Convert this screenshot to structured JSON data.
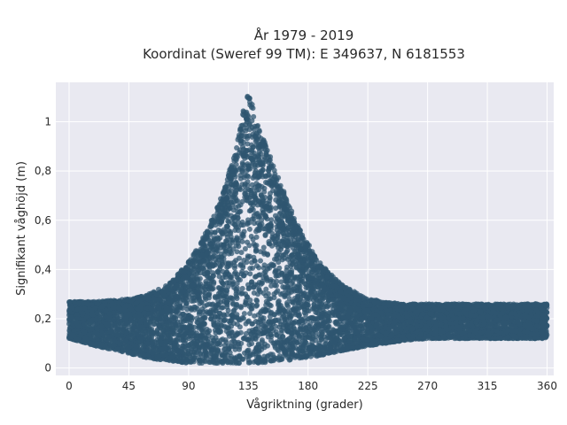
{
  "chart_data": {
    "type": "scatter",
    "title": "År 1979 - 2019",
    "subtitle": "Koordinat (Sweref 99 TM): E 349637, N 6181553",
    "xlabel": "Vågriktning (grader)",
    "ylabel": "Signifikant våghöjd (m)",
    "xlim": [
      -10,
      365
    ],
    "ylim": [
      -0.03,
      1.16
    ],
    "xticks": [
      0,
      45,
      90,
      135,
      180,
      225,
      270,
      315,
      360
    ],
    "yticks": [
      0,
      0.2,
      0.4,
      0.6,
      0.8,
      1
    ],
    "ytick_labels": [
      "0",
      "0,2",
      "0,4",
      "0,6",
      "0,8",
      "1"
    ],
    "grid": true,
    "marker_color": "#2f5570",
    "plot_background": "#e9e9f1",
    "envelope": {
      "x": [
        0,
        20,
        45,
        60,
        75,
        90,
        105,
        115,
        125,
        130,
        135,
        145,
        155,
        165,
        175,
        190,
        205,
        225,
        250,
        270,
        300,
        330,
        360
      ],
      "y_max": [
        0.27,
        0.27,
        0.28,
        0.3,
        0.34,
        0.43,
        0.57,
        0.7,
        0.88,
        1.02,
        1.12,
        0.95,
        0.82,
        0.67,
        0.55,
        0.42,
        0.34,
        0.28,
        0.26,
        0.26,
        0.26,
        0.26,
        0.26
      ],
      "y_min": [
        0.12,
        0.09,
        0.06,
        0.04,
        0.03,
        0.02,
        0.02,
        0.02,
        0.02,
        0.02,
        0.02,
        0.02,
        0.03,
        0.03,
        0.04,
        0.05,
        0.07,
        0.09,
        0.11,
        0.12,
        0.12,
        0.12,
        0.12
      ]
    },
    "point_count": 9000
  }
}
